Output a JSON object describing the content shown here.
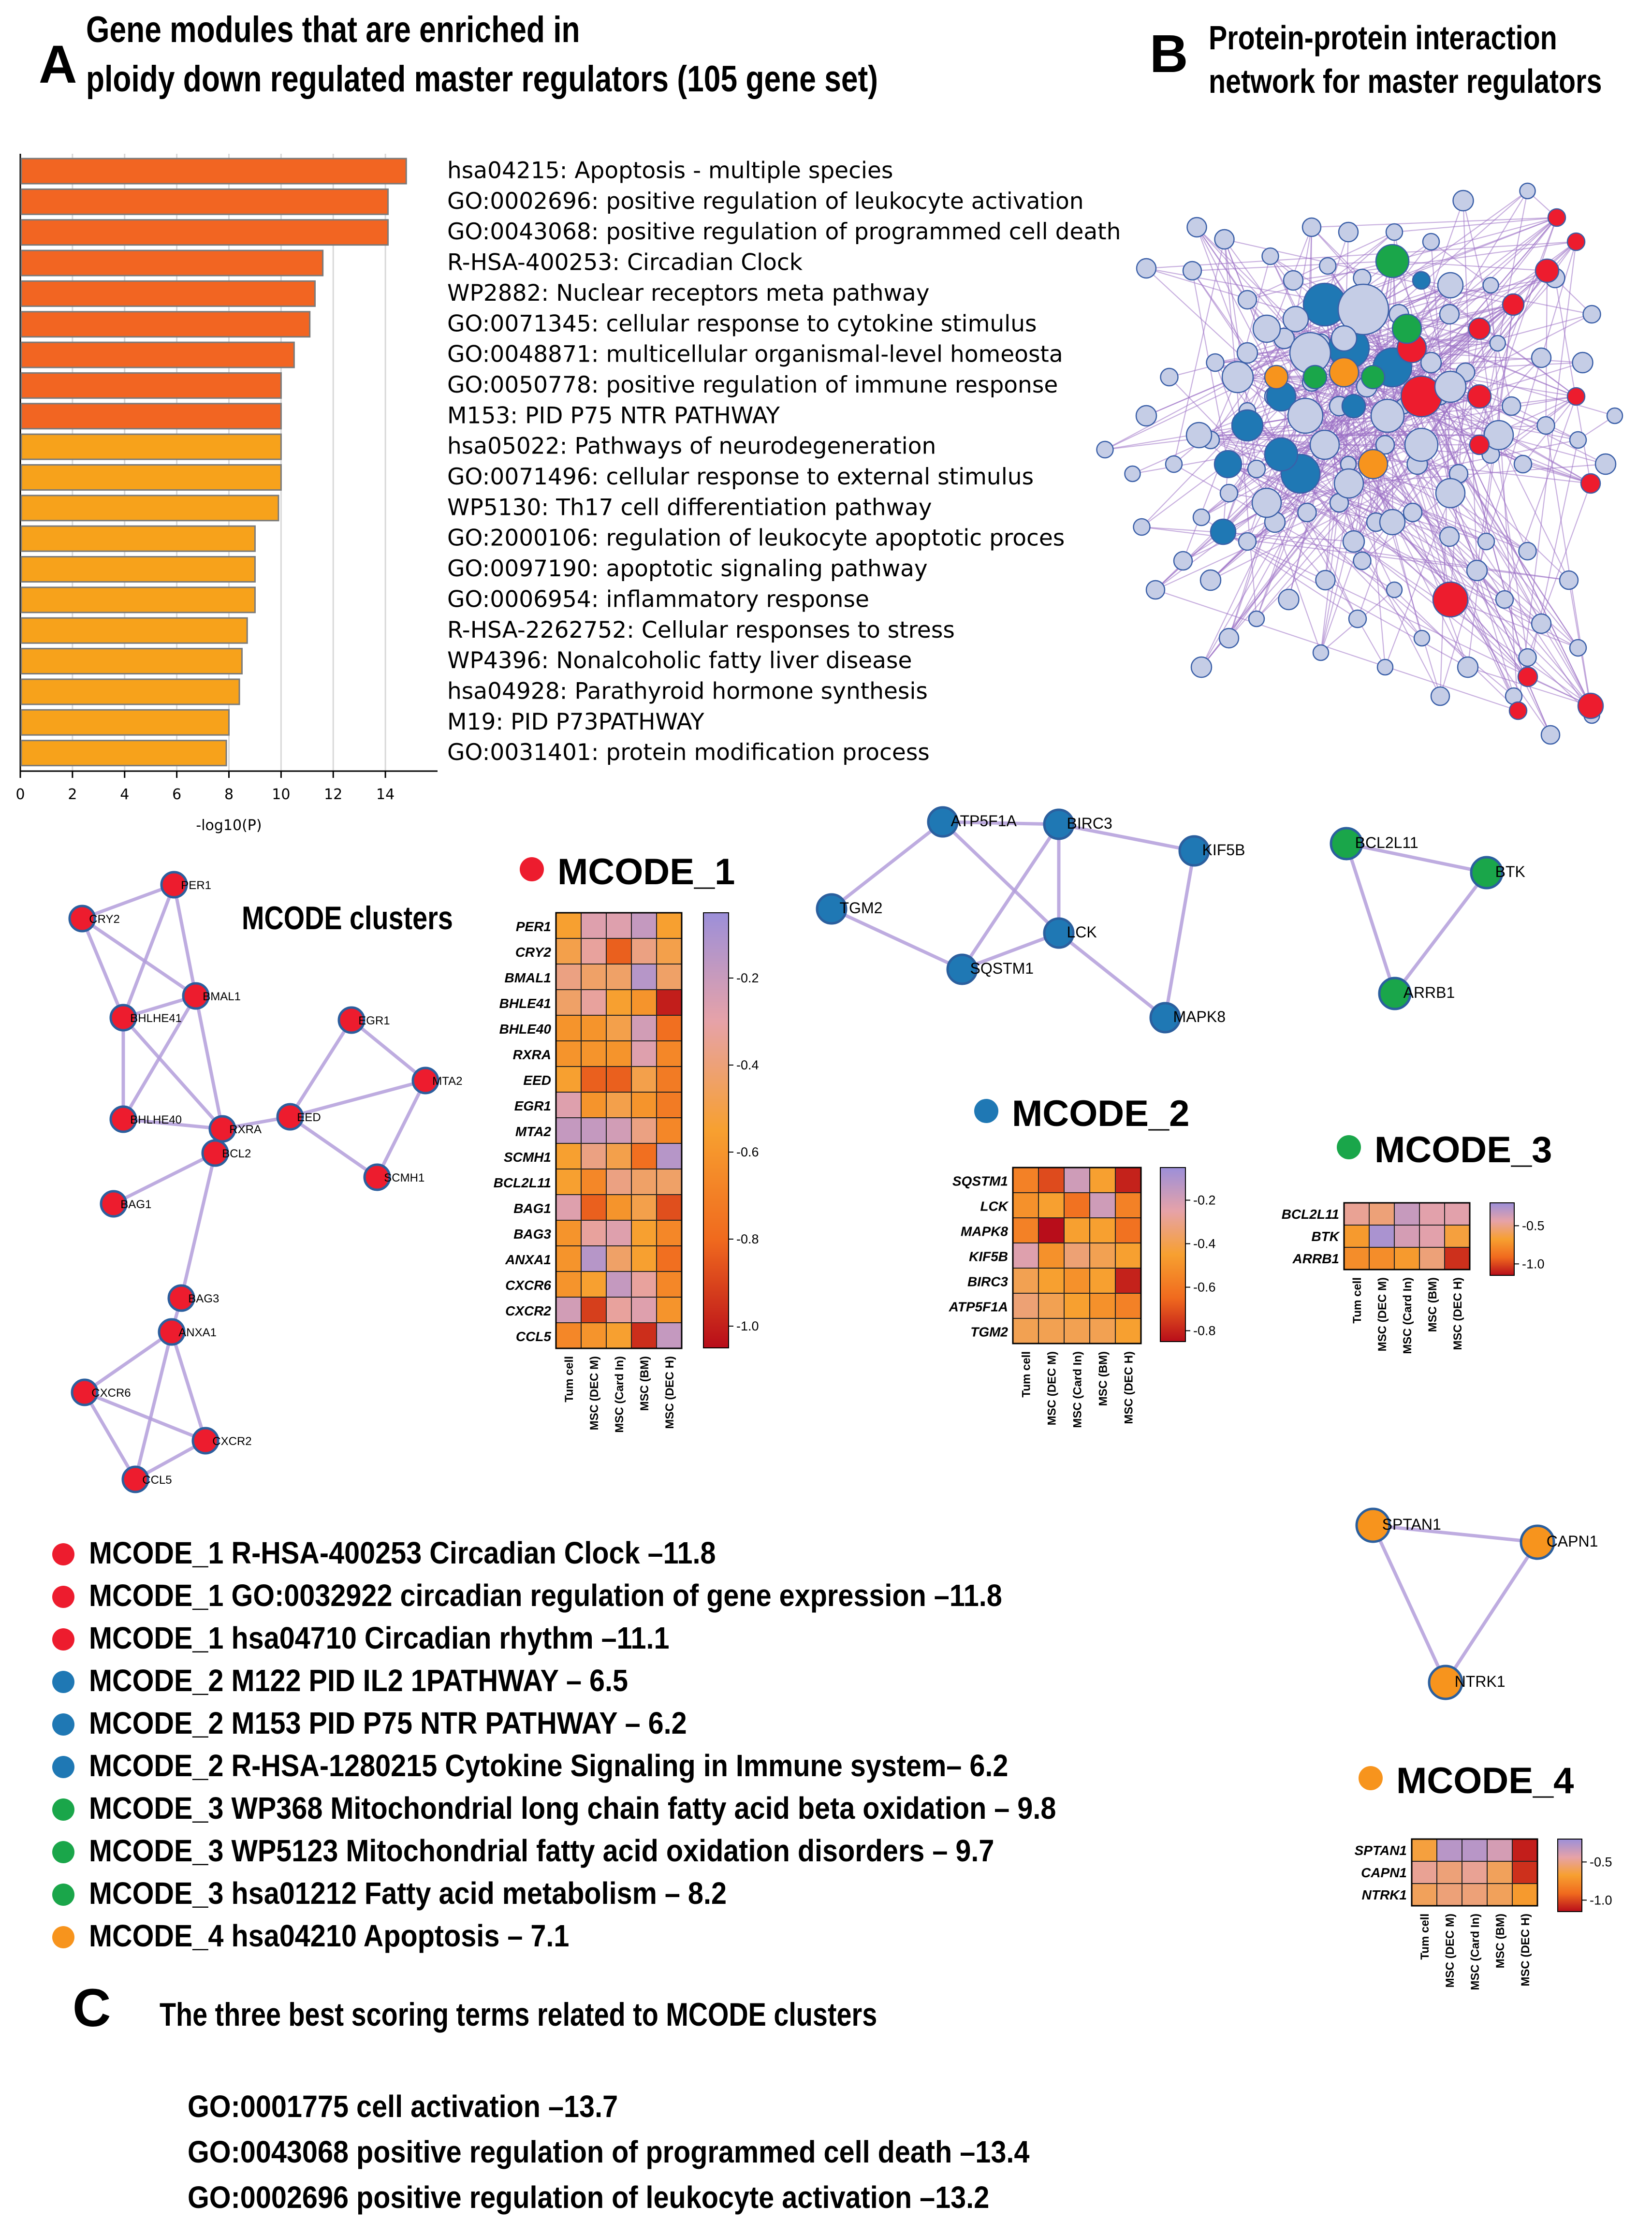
{
  "panelA": {
    "letter": "A",
    "title_line1": "Gene modules that are enriched in",
    "title_line2": "ploidy down regulated master regulators (105 gene set)"
  },
  "panelB": {
    "letter": "B",
    "title_line1": "Protein-protein interaction",
    "title_line2": "network for master regulators"
  },
  "panelC": {
    "letter": "C",
    "title": "The three best scoring terms related to MCODE clusters",
    "terms": [
      "GO:0001775  cell activation –13.7",
      "GO:0043068  positive regulation of programmed cell death –13.4",
      "GO:0002696  positive regulation of leukocyte activation –13.2"
    ]
  },
  "mcode_clusters_title": "MCODE clusters",
  "colors": {
    "mcode1": "#ed1c2e",
    "mcode2": "#1f78b4",
    "mcode3": "#1aa64a",
    "mcode4": "#f7941d",
    "bar_dark": "#f26522",
    "bar_light": "#f7a21b",
    "node_default": "#c5cde6",
    "edge": "#9b6fc4"
  },
  "chart_data": {
    "type": "bar",
    "orientation": "horizontal",
    "xlabel": "-log10(P)",
    "xlim": [
      0,
      16
    ],
    "xticks": [
      0,
      2,
      4,
      6,
      8,
      10,
      12,
      14
    ],
    "grid": true,
    "categories": [
      "hsa04215: Apoptosis - multiple species",
      "GO:0002696: positive regulation of leukocyte activation",
      "GO:0043068: positive regulation of programmed cell death",
      "R-HSA-400253: Circadian Clock",
      "WP2882: Nuclear receptors meta pathway",
      "GO:0071345: cellular response to cytokine stimulus",
      "GO:0048871: multicellular organismal-level homeosta",
      "GO:0050778: positive regulation of immune response",
      "M153: PID P75 NTR PATHWAY",
      "hsa05022: Pathways of neurodegeneration",
      "GO:0071496: cellular response to external stimulus",
      "WP5130: Th17 cell differentiation pathway",
      "GO:2000106: regulation of leukocyte apoptotic proces",
      "GO:0097190: apoptotic signaling pathway",
      "GO:0006954: inflammatory response",
      "R-HSA-2262752: Cellular responses to stress",
      "WP4396: Nonalcoholic fatty liver disease",
      "hsa04928: Parathyroid hormone synthesis",
      "M19: PID P73PATHWAY",
      "GO:0031401: protein modification process"
    ],
    "values": [
      14.8,
      14.1,
      14.1,
      11.6,
      11.3,
      11.1,
      10.5,
      10.0,
      10.0,
      10.0,
      10.0,
      9.9,
      9.0,
      9.0,
      9.0,
      8.7,
      8.5,
      8.4,
      8.0,
      7.9
    ],
    "color_levels": [
      "dark",
      "dark",
      "dark",
      "dark",
      "dark",
      "dark",
      "dark",
      "dark",
      "dark",
      "light",
      "light",
      "light",
      "light",
      "light",
      "light",
      "light",
      "light",
      "light",
      "light",
      "light"
    ]
  },
  "heatmap_columns": [
    "Tum cell",
    "MSC (DEC M)",
    "MSC (Card In)",
    "MSC (BM)",
    "MSC (DEC H)"
  ],
  "heatmaps": {
    "mcode1": {
      "title": "MCODE_1",
      "rows": [
        "PER1",
        "CRY2",
        "BMAL1",
        "BHLE41",
        "BHLE40",
        "RXRA",
        "EED",
        "EGR1",
        "MTA2",
        "SCMH1",
        "BCL2L11",
        "BAG1",
        "BAG3",
        "ANXA1",
        "CXCR6",
        "CXCR2",
        "CCL5"
      ],
      "values": [
        [
          -0.55,
          -0.3,
          -0.3,
          -0.2,
          -0.55
        ],
        [
          -0.5,
          -0.35,
          -0.8,
          -0.4,
          -0.5
        ],
        [
          -0.4,
          -0.45,
          -0.45,
          -0.15,
          -0.45
        ],
        [
          -0.45,
          -0.35,
          -0.55,
          -0.6,
          -1.0
        ],
        [
          -0.6,
          -0.6,
          -0.5,
          -0.25,
          -0.75
        ],
        [
          -0.6,
          -0.6,
          -0.6,
          -0.3,
          -0.65
        ],
        [
          -0.55,
          -0.8,
          -0.8,
          -0.5,
          -0.7
        ],
        [
          -0.3,
          -0.6,
          -0.5,
          -0.6,
          -0.7
        ],
        [
          -0.2,
          -0.2,
          -0.25,
          -0.4,
          -0.65
        ],
        [
          -0.55,
          -0.4,
          -0.5,
          -0.75,
          -0.15
        ],
        [
          -0.55,
          -0.65,
          -0.4,
          -0.45,
          -0.45
        ],
        [
          -0.3,
          -0.8,
          -0.6,
          -0.5,
          -0.85
        ],
        [
          -0.6,
          -0.35,
          -0.3,
          -0.55,
          -0.65
        ],
        [
          -0.6,
          -0.15,
          -0.45,
          -0.55,
          -0.75
        ],
        [
          -0.6,
          -0.55,
          -0.2,
          -0.35,
          -0.65
        ],
        [
          -0.25,
          -0.9,
          -0.35,
          -0.3,
          -0.6
        ],
        [
          -0.65,
          -0.6,
          -0.55,
          -0.95,
          -0.2
        ]
      ],
      "colorbar_ticks": [
        -0.2,
        -0.4,
        -0.6,
        -0.8,
        -1.0
      ],
      "colorbar_range": [
        -1.05,
        -0.05
      ]
    },
    "mcode2": {
      "title": "MCODE_2",
      "rows": [
        "SQSTM1",
        "LCK",
        "MAPK8",
        "KIF5B",
        "BIRC3",
        "ATP5F1A",
        "TGM2"
      ],
      "values": [
        [
          -0.55,
          -0.7,
          -0.2,
          -0.45,
          -0.8
        ],
        [
          -0.5,
          -0.45,
          -0.6,
          -0.2,
          -0.55
        ],
        [
          -0.55,
          -0.9,
          -0.45,
          -0.45,
          -0.6
        ],
        [
          -0.25,
          -0.5,
          -0.35,
          -0.4,
          -0.45
        ],
        [
          -0.4,
          -0.45,
          -0.5,
          -0.45,
          -0.8
        ],
        [
          -0.35,
          -0.4,
          -0.45,
          -0.5,
          -0.55
        ],
        [
          -0.4,
          -0.4,
          -0.4,
          -0.4,
          -0.45
        ]
      ],
      "colorbar_ticks": [
        -0.2,
        -0.4,
        -0.6,
        -0.8
      ],
      "colorbar_range": [
        -0.85,
        -0.05
      ]
    },
    "mcode3": {
      "title": "MCODE_3",
      "rows": [
        "BCL2L11",
        "BTK",
        "ARRB1"
      ],
      "values": [
        [
          -0.5,
          -0.55,
          -0.35,
          -0.45,
          -0.45
        ],
        [
          -0.7,
          -0.25,
          -0.4,
          -0.45,
          -0.65
        ],
        [
          -0.75,
          -0.75,
          -0.7,
          -0.55,
          -1.05
        ]
      ],
      "colorbar_ticks": [
        -0.5,
        -1.0
      ],
      "colorbar_range": [
        -1.15,
        -0.2
      ]
    },
    "mcode4": {
      "title": "MCODE_4",
      "rows": [
        "SPTAN1",
        "CAPN1",
        "NTRK1"
      ],
      "values": [
        [
          -0.65,
          -0.3,
          -0.3,
          -0.4,
          -1.1
        ],
        [
          -0.5,
          -0.55,
          -0.5,
          -0.6,
          -1.05
        ],
        [
          -0.6,
          -0.55,
          -0.55,
          -0.6,
          -0.7
        ]
      ],
      "colorbar_ticks": [
        -0.5,
        -1.0
      ],
      "colorbar_range": [
        -1.15,
        -0.2
      ]
    }
  },
  "networks": {
    "mcode1_nodes": [
      "PER1",
      "CRY2",
      "BMAL1",
      "BHLHE41",
      "BHLHE40",
      "RXRA",
      "EED",
      "EGR1",
      "MTA2",
      "SCMH1",
      "BCL2",
      "BAG1",
      "BAG3",
      "ANXA1",
      "CXCR6",
      "CXCR2",
      "CCL5"
    ],
    "mcode2_nodes": [
      "ATP5F1A",
      "BIRC3",
      "KIF5B",
      "TGM2",
      "SQSTM1",
      "LCK",
      "MAPK8"
    ],
    "mcode3_nodes": [
      "BCL2L11",
      "BTK",
      "ARRB1"
    ],
    "mcode4_nodes": [
      "SPTAN1",
      "CAPN1",
      "NTRK1"
    ]
  },
  "mcode_terms": [
    {
      "cluster": "mcode1",
      "text": "MCODE_1 R-HSA-400253  Circadian Clock –11.8"
    },
    {
      "cluster": "mcode1",
      "text": "MCODE_1 GO:0032922  circadian regulation of gene expression –11.8"
    },
    {
      "cluster": "mcode1",
      "text": "MCODE_1 hsa04710 Circadian rhythm –11.1"
    },
    {
      "cluster": "mcode2",
      "text": "MCODE_2 M122  PID IL2 1PATHWAY – 6.5"
    },
    {
      "cluster": "mcode2",
      "text": "MCODE_2 M153  PID P75 NTR PATHWAY – 6.2"
    },
    {
      "cluster": "mcode2",
      "text": "MCODE_2 R-HSA-1280215  Cytokine Signaling in Immune system– 6.2"
    },
    {
      "cluster": "mcode3",
      "text": "MCODE_3 WP368  Mitochondrial long chain fatty acid beta oxidation – 9.8"
    },
    {
      "cluster": "mcode3",
      "text": "MCODE_3 WP5123  Mitochondrial fatty acid oxidation disorders – 9.7"
    },
    {
      "cluster": "mcode3",
      "text": "MCODE_3 hsa01212 Fatty acid metabolism – 8.2"
    },
    {
      "cluster": "mcode4",
      "text": "MCODE_4 hsa04210 Apoptosis – 7.1"
    }
  ]
}
